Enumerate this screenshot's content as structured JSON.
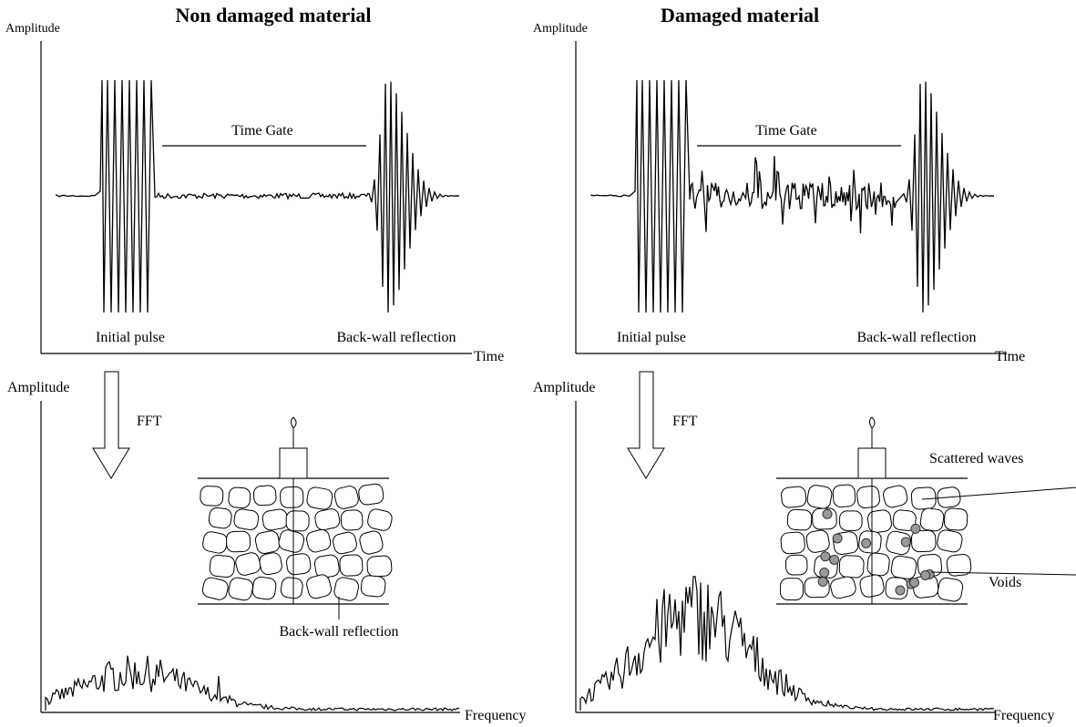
{
  "panels": [
    {
      "title": "Non damaged material",
      "time_domain": {
        "y_label": "Amplitude",
        "gate_label": "Time Gate",
        "pulse_label": "Initial pulse",
        "reflection_label": "Back-wall reflection",
        "x_label": "Time"
      },
      "frequency_domain": {
        "y_label": "Amplitude",
        "fft_label": "FFT",
        "x_label": "Frequency",
        "schematic_label": "Back-wall reflection"
      }
    },
    {
      "title": "Damaged material",
      "time_domain": {
        "y_label": "Amplitude",
        "gate_label": "Time Gate",
        "pulse_label": "Initial pulse",
        "reflection_label": "Back-wall reflection",
        "x_label": "Time"
      },
      "frequency_domain": {
        "y_label": "Amplitude",
        "fft_label": "FFT",
        "x_label": "Frequency",
        "scattered_label": "Scattered waves",
        "voids_label": "Voids"
      }
    }
  ]
}
